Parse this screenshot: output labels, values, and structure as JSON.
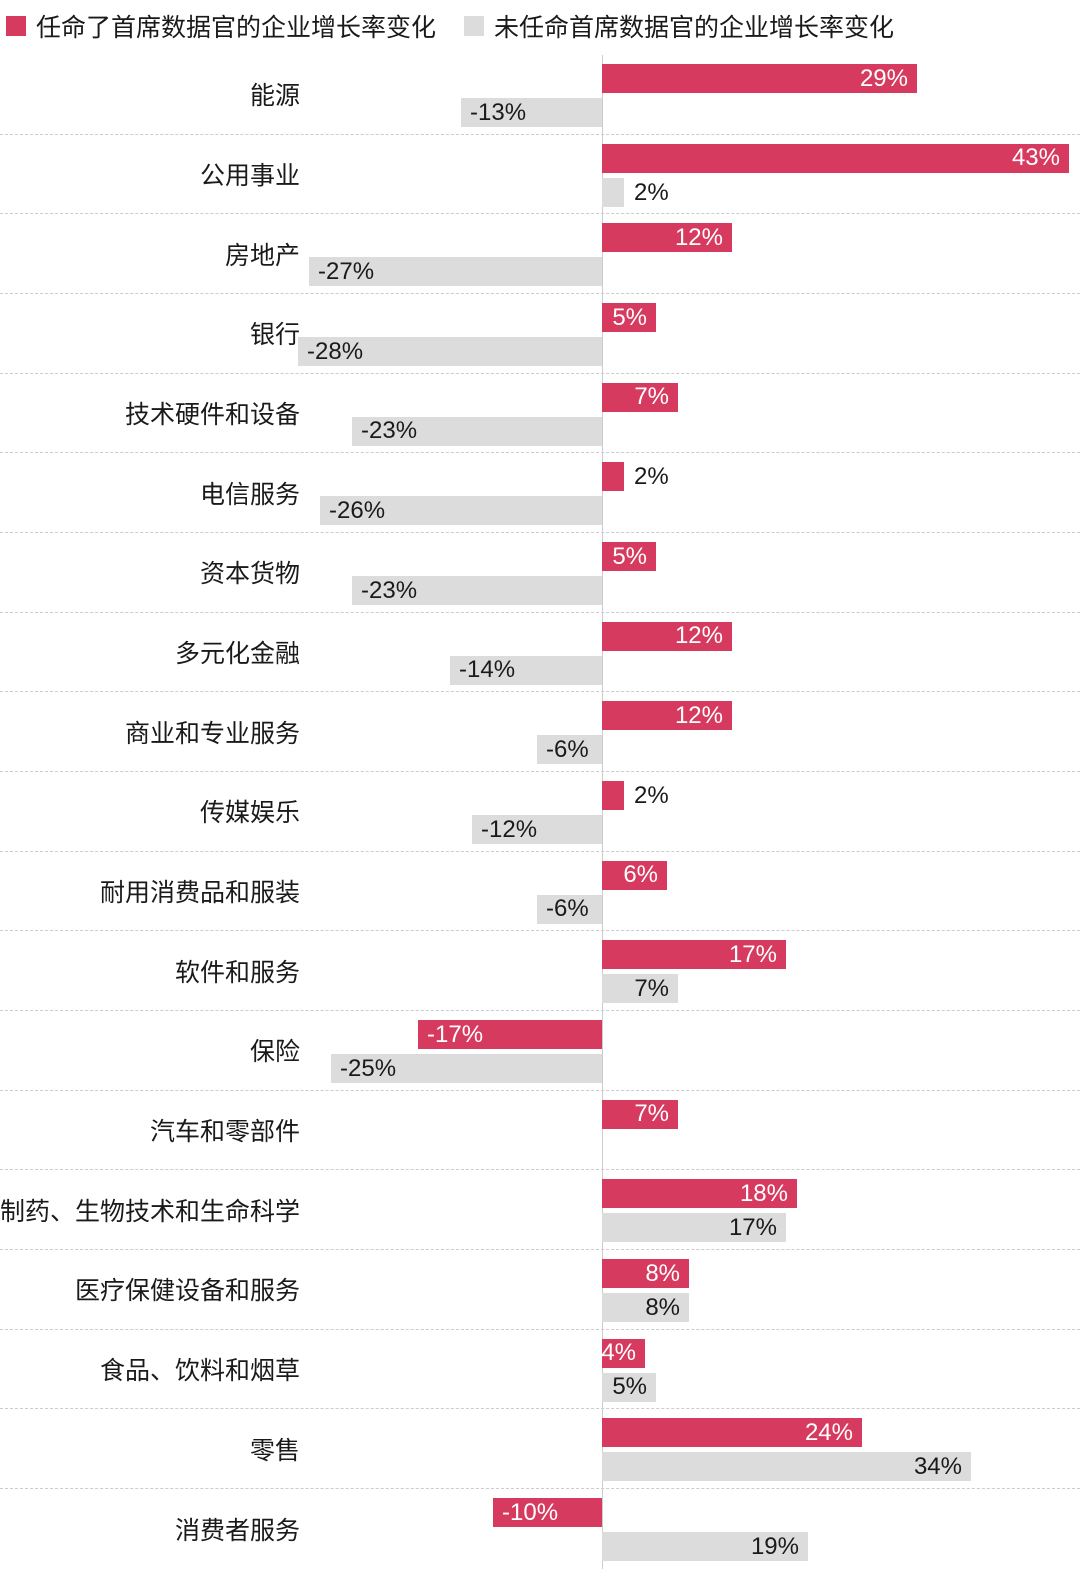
{
  "legend": [
    {
      "label": "任命了首席数据官的企业增长率变化",
      "color": "#d63a5f"
    },
    {
      "label": "未任命首席数据官的企业增长率变化",
      "color": "#dcdcdc"
    }
  ],
  "colors": {
    "cdo_series": "#d63a5f",
    "no_cdo_series": "#dcdcdc",
    "axis_line": "#cccccc",
    "grid_dashed": "#cccccc",
    "text": "#1a1a1a",
    "label_on_red": "#ffffff"
  },
  "chart_data": {
    "type": "bar",
    "orientation": "horizontal",
    "title": "",
    "xlabel": "",
    "ylabel": "",
    "xlim": [
      -28,
      43
    ],
    "grid": "dashed-row-separators",
    "legend_position": "top-left",
    "value_suffix": "%",
    "categories": [
      "能源",
      "公用事业",
      "房地产",
      "银行",
      "技术硬件和设备",
      "电信服务",
      "资本货物",
      "多元化金融",
      "商业和专业服务",
      "传媒娱乐",
      "耐用消费品和服装",
      "软件和服务",
      "保险",
      "汽车和零部件",
      "制药、生物技术和生命科学",
      "医疗保健设备和服务",
      "食品、饮料和烟草",
      "零售",
      "消费者服务"
    ],
    "series": [
      {
        "name": "任命了首席数据官的企业增长率变化",
        "color": "#d63a5f",
        "values": [
          29,
          43,
          12,
          5,
          7,
          2,
          5,
          12,
          12,
          2,
          6,
          17,
          -17,
          7,
          18,
          8,
          4,
          24,
          -10
        ]
      },
      {
        "name": "未任命首席数据官的企业增长率变化",
        "color": "#dcdcdc",
        "values": [
          -13,
          2,
          -27,
          -28,
          -23,
          -26,
          -23,
          -14,
          -6,
          -12,
          -6,
          7,
          -25,
          null,
          17,
          8,
          5,
          34,
          19
        ]
      }
    ]
  }
}
